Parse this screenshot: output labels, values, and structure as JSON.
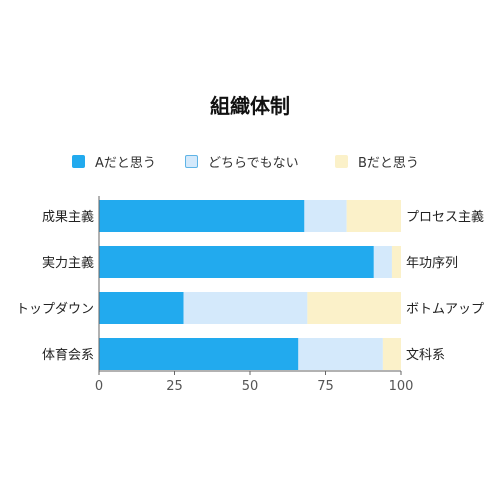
{
  "chart_data": {
    "type": "bar",
    "orientation": "horizontal",
    "stacked": true,
    "title": "組織体制",
    "categories": [
      "成果主義",
      "実力主義",
      "トップダウン",
      "体育会系"
    ],
    "right_labels": [
      "プロセス主義",
      "年功序列",
      "ボトムアップ",
      "文科系"
    ],
    "series": [
      {
        "name": "Aだと思う",
        "color": "#22aaee",
        "values": [
          68,
          91,
          28,
          66
        ]
      },
      {
        "name": "どちらでもない",
        "color": "#d4e9fb",
        "values": [
          14,
          6,
          41,
          28
        ]
      },
      {
        "name": "Bだと思う",
        "color": "#fbf1c9",
        "values": [
          18,
          3,
          31,
          6
        ]
      }
    ],
    "xlim": [
      0,
      100
    ],
    "xticks": [
      0,
      25,
      50,
      75,
      100
    ],
    "grid": false,
    "legend_position": "top"
  }
}
